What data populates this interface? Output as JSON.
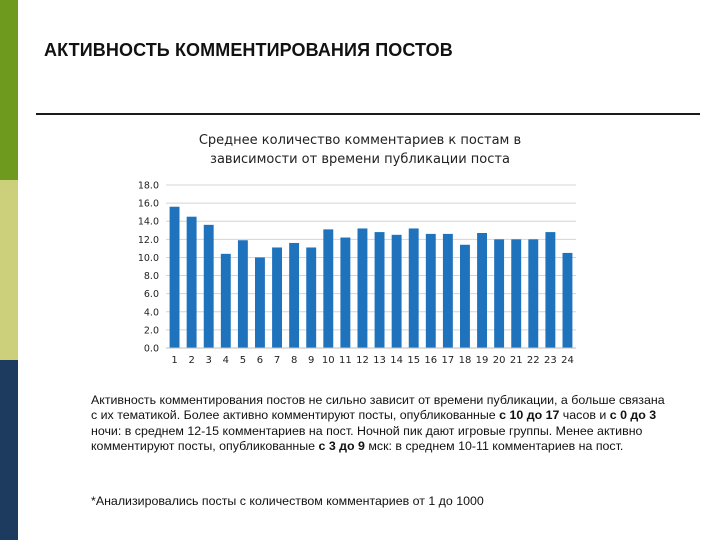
{
  "slide": {
    "title": "АКТИВНОСТЬ КОММЕНТИРОВАНИЯ ПОСТОВ"
  },
  "theme": {
    "accent_green": "#6e9a1e",
    "accent_yellow": "#cdd07a",
    "accent_navy": "#1d3b5e",
    "bar_color": "#1f73bd"
  },
  "chart_data": {
    "type": "bar",
    "title_lines": [
      "Среднее количество комментариев к постам в",
      "зависимости от времени публикации поста"
    ],
    "categories": [
      "1",
      "2",
      "3",
      "4",
      "5",
      "6",
      "7",
      "8",
      "9",
      "10",
      "11",
      "12",
      "13",
      "14",
      "15",
      "16",
      "17",
      "18",
      "19",
      "20",
      "21",
      "22",
      "23",
      "24"
    ],
    "values": [
      15.6,
      14.5,
      13.6,
      10.4,
      11.9,
      10.0,
      11.1,
      11.6,
      11.1,
      13.1,
      12.2,
      13.2,
      12.8,
      12.5,
      13.2,
      12.6,
      12.6,
      11.4,
      12.7,
      12.0,
      12.0,
      12.0,
      12.8,
      10.5
    ],
    "yticks": [
      "0.0",
      "2.0",
      "4.0",
      "6.0",
      "8.0",
      "10.0",
      "12.0",
      "14.0",
      "16.0",
      "18.0"
    ],
    "ylim": [
      0,
      18
    ],
    "xlabel": "",
    "ylabel": "",
    "grid": true,
    "legend": false
  },
  "body": {
    "p1": "Активность комментирования постов не сильно зависит от времени публикации, а больше связана с их тематикой. Более активно комментируют посты, опубликованные ",
    "b1": "с 10 до 17",
    "p2": " часов и ",
    "b2": "с 0 до 3",
    "p3": " ночи: в среднем 12-15 комментариев на пост. Ночной пик дают игровые группы. Менее активно комментируют посты, опубликованные ",
    "b3": "с 3 до 9",
    "p4": " мск: в среднем 10-11 комментариев на пост."
  },
  "footnote": "*Анализировались посты с количеством комментариев от 1 до 1000"
}
